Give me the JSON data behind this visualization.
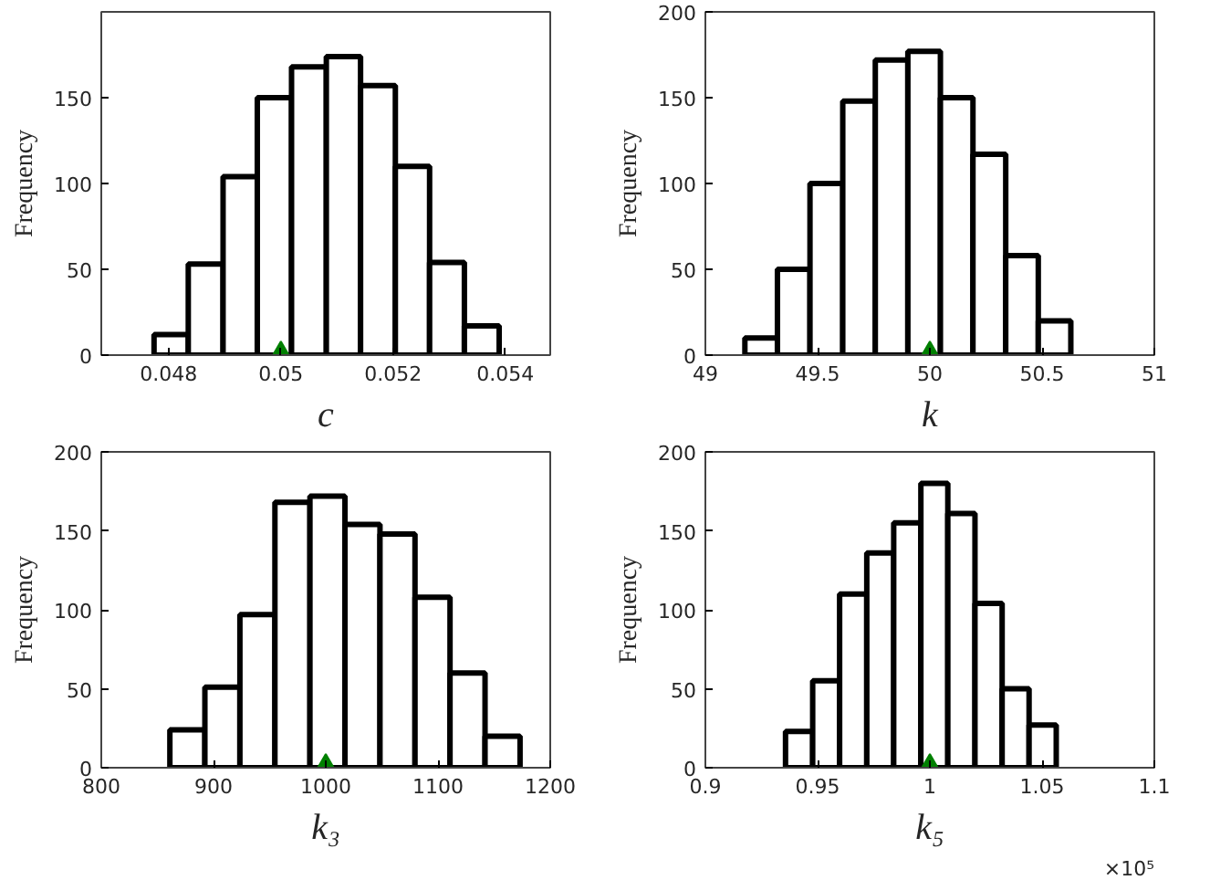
{
  "chart_data": [
    {
      "type": "histogram",
      "xlabel": "c",
      "ylabel": "Frequency",
      "xlim": [
        0.0468,
        0.0548
      ],
      "ylim": [
        0,
        200
      ],
      "xticks": [
        0.048,
        0.05,
        0.052,
        0.054
      ],
      "yticks": [
        0,
        50,
        100,
        150
      ],
      "series": [
        {
          "color": "#000000",
          "bins": [
            0.04774,
            0.04835,
            0.04897,
            0.04958,
            0.05019,
            0.05081,
            0.05142,
            0.05204,
            0.05265,
            0.05327,
            0.05389
          ],
          "values": [
            12,
            53,
            104,
            150,
            168,
            174,
            157,
            110,
            54,
            17
          ]
        },
        {
          "type": "scatter",
          "marker": "triangle",
          "color": "#008000",
          "x": [
            0.05
          ],
          "values": [
            0
          ]
        }
      ]
    },
    {
      "type": "histogram",
      "xlabel": "k",
      "ylabel": "Frequency",
      "xlim": [
        49,
        51
      ],
      "ylim": [
        0,
        200
      ],
      "xticks": [
        49,
        49.5,
        50,
        50.5,
        51
      ],
      "yticks": [
        0,
        50,
        100,
        150,
        200
      ],
      "series": [
        {
          "color": "#000000",
          "bins": [
            49.176,
            49.321,
            49.466,
            49.612,
            49.757,
            49.902,
            50.047,
            50.192,
            50.338,
            50.483,
            50.628
          ],
          "values": [
            10,
            50,
            100,
            148,
            172,
            177,
            150,
            117,
            58,
            20
          ]
        },
        {
          "type": "scatter",
          "marker": "triangle",
          "color": "#008000",
          "x": [
            50
          ],
          "values": [
            0
          ]
        }
      ]
    },
    {
      "type": "histogram",
      "xlabel": "k₃",
      "ylabel": "Frequency",
      "xlim": [
        800,
        1200
      ],
      "ylim": [
        0,
        200
      ],
      "xticks": [
        800,
        900,
        1000,
        1100,
        1200
      ],
      "yticks": [
        0,
        50,
        100,
        150,
        200
      ],
      "series": [
        {
          "color": "#000000",
          "bins": [
            861.1,
            892.3,
            923.5,
            954.7,
            985.9,
            1017.1,
            1048.3,
            1079.5,
            1110.7,
            1141.9,
            1173.1
          ],
          "values": [
            24,
            51,
            97,
            168,
            172,
            154,
            148,
            108,
            60,
            20
          ]
        },
        {
          "type": "scatter",
          "marker": "triangle",
          "color": "#008000",
          "x": [
            1000
          ],
          "values": [
            0
          ]
        }
      ]
    },
    {
      "type": "histogram",
      "xlabel": "k₅",
      "ylabel": "Frequency",
      "xlim": [
        0.9,
        1.1
      ],
      "ylim": [
        0,
        200
      ],
      "xticks": [
        0.9,
        0.95,
        1,
        1.05,
        1.1
      ],
      "yticks": [
        0,
        50,
        100,
        150,
        200
      ],
      "annotations": [
        "×10⁵"
      ],
      "series": [
        {
          "color": "#000000",
          "bins": [
            0.9357,
            0.9478,
            0.9598,
            0.9719,
            0.9839,
            0.996,
            1.008,
            1.0201,
            1.0322,
            1.0442,
            1.0563
          ],
          "values": [
            23,
            55,
            110,
            136,
            155,
            180,
            161,
            104,
            50,
            27
          ]
        },
        {
          "type": "scatter",
          "marker": "triangle",
          "color": "#008000",
          "x": [
            1
          ],
          "values": [
            0
          ]
        }
      ]
    }
  ]
}
